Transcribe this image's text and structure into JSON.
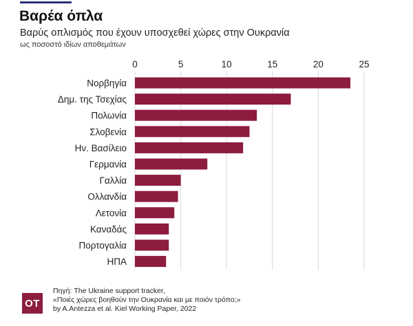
{
  "header": {
    "title": "Βαρέα όπλα",
    "subtitle": "Βαρύς οπλισμός που έχουν υποσχεθεί χώρες στην Ουκρανία",
    "note": "ως ποσοστό ιδίων αποθεμάτων"
  },
  "footer": {
    "logo_text": "OT",
    "source_lines": [
      "Πηγή: The Ukraine support tracker,",
      "«Ποιές χώρες βοηθούν την Ουκρανία και με ποιόν τρόπο;»",
      "by A.Antezza et al. Kiel Working Paper, 2022"
    ]
  },
  "colors": {
    "bar": "#8d1c3d",
    "accent_rule": "#2a3276",
    "grid": "#d9d9d9",
    "logo": "#8d1c3d"
  },
  "chart_data": {
    "type": "bar",
    "orientation": "horizontal",
    "title": "Βαρέα όπλα",
    "subtitle": "Βαρύς οπλισμός που έχουν υποσχεθεί χώρες στην Ουκρανία",
    "xlabel": "",
    "ylabel": "",
    "categories": [
      "Νορβηγία",
      "Δημ. της Τσεχίας",
      "Πολωνία",
      "Σλοβενία",
      "Ην. Βασίλειο",
      "Γερμανία",
      "Γαλλία",
      "Ολλανδία",
      "Λετονία",
      "Καναδάς",
      "Πορτογαλία",
      "ΗΠΑ"
    ],
    "values": [
      23.5,
      17.0,
      13.3,
      12.5,
      11.8,
      7.9,
      5.0,
      4.7,
      4.3,
      3.7,
      3.7,
      3.4
    ],
    "xlim": [
      0,
      25
    ],
    "xticks": [
      0,
      5,
      10,
      15,
      20,
      25
    ],
    "axis_position": "top",
    "grid": true,
    "legend": "none"
  }
}
